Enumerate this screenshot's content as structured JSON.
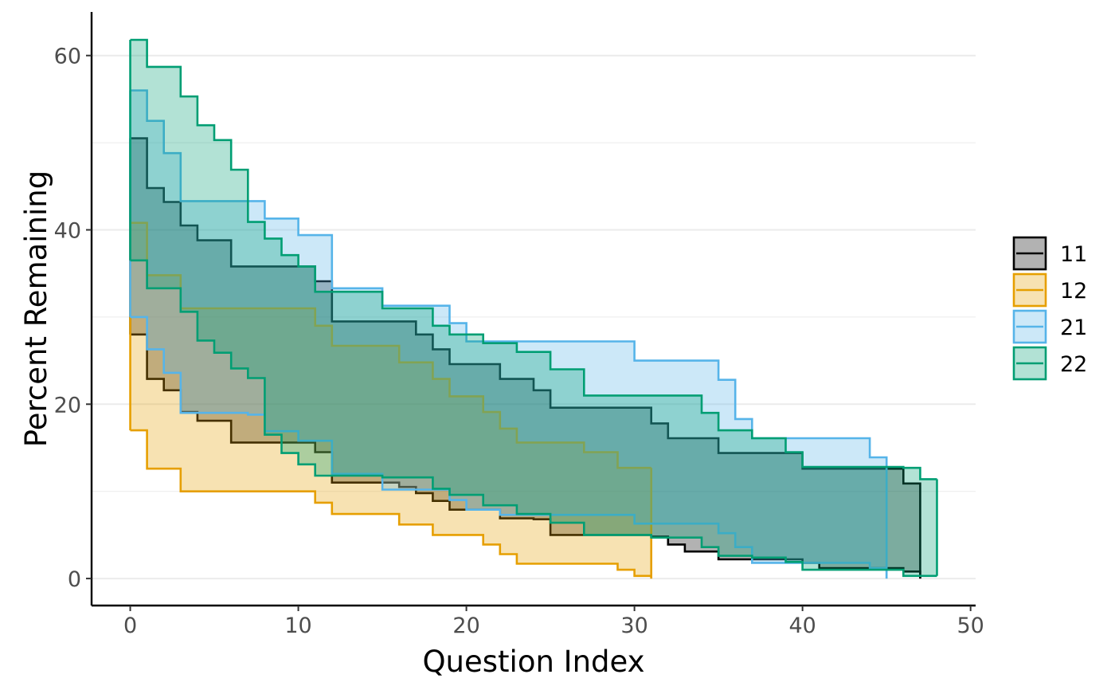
{
  "chart_data": {
    "type": "area",
    "subtype": "step-ribbon",
    "xlabel": "Question Index",
    "ylabel": "Percent Remaining",
    "xlim": [
      -2.3,
      50.3
    ],
    "ylim": [
      -3.1,
      65
    ],
    "xticks": [
      0,
      10,
      20,
      30,
      40,
      50
    ],
    "yticks": [
      0,
      20,
      40,
      60
    ],
    "grid": "horizontal",
    "legend_position": "right",
    "series": [
      {
        "name": "11",
        "color": "#000000",
        "fill": "#000000",
        "x": [
          0,
          1,
          2,
          3,
          4,
          6,
          7,
          11,
          12,
          15,
          16,
          17,
          18,
          19,
          20,
          22,
          24,
          25,
          31,
          32,
          33,
          35,
          36,
          40,
          41,
          46,
          47
        ],
        "upper": [
          50.5,
          44.8,
          43.2,
          40.5,
          38.8,
          35.8,
          35.8,
          34.1,
          29.5,
          29.5,
          29.5,
          28.0,
          26.3,
          24.6,
          24.6,
          22.9,
          21.6,
          19.6,
          17.8,
          16.1,
          16.1,
          14.4,
          14.4,
          12.6,
          12.6,
          10.9,
          0
        ],
        "lower": [
          28.0,
          22.9,
          21.6,
          19.1,
          18.1,
          15.6,
          15.6,
          14.5,
          11.0,
          11.0,
          10.5,
          9.8,
          8.9,
          7.9,
          7.9,
          6.9,
          6.8,
          5.0,
          4.8,
          3.9,
          3.1,
          2.2,
          2.2,
          1.8,
          1.2,
          0.8,
          0
        ],
        "end_x": 47
      },
      {
        "name": "12",
        "color": "#E69F00",
        "fill": "#E69F00",
        "x": [
          0,
          1,
          3,
          4,
          7,
          8,
          10,
          11,
          12,
          13,
          15,
          16,
          17,
          18,
          19,
          20,
          21,
          22,
          23,
          25,
          26,
          27,
          28,
          29,
          30,
          31
        ],
        "upper": [
          40.8,
          34.8,
          31.0,
          31.0,
          31.0,
          31.0,
          31.0,
          29.0,
          26.7,
          26.7,
          26.7,
          24.8,
          24.8,
          22.9,
          20.9,
          20.9,
          19.1,
          17.2,
          15.6,
          15.6,
          15.6,
          14.5,
          14.5,
          12.7,
          12.7,
          12.7
        ],
        "lower": [
          17.0,
          12.6,
          10.0,
          10.0,
          10.0,
          10.0,
          10.0,
          8.7,
          7.4,
          7.4,
          7.4,
          6.2,
          6.2,
          5.0,
          5.0,
          5.0,
          3.9,
          2.8,
          1.7,
          1.7,
          1.7,
          1.7,
          1.7,
          1.0,
          0.3,
          0
        ],
        "end_x": 31
      },
      {
        "name": "21",
        "color": "#56B4E9",
        "fill": "#56B4E9",
        "x": [
          0,
          1,
          2,
          3,
          7,
          8,
          10,
          12,
          15,
          19,
          20,
          22,
          30,
          35,
          36,
          37,
          40,
          44,
          45
        ],
        "upper": [
          56.0,
          52.5,
          48.8,
          43.3,
          43.3,
          41.3,
          39.4,
          33.3,
          31.3,
          29.3,
          27.2,
          27.2,
          25.0,
          22.8,
          18.3,
          16.1,
          16.1,
          13.9,
          0
        ],
        "lower": [
          30.0,
          26.3,
          23.6,
          19.0,
          18.8,
          16.9,
          15.8,
          12.0,
          10.2,
          9.0,
          7.9,
          7.3,
          6.3,
          5.2,
          3.6,
          1.8,
          1.8,
          1.2,
          0
        ],
        "end_x": 45
      },
      {
        "name": "22",
        "color": "#009E73",
        "fill": "#009E73",
        "x": [
          0,
          1,
          3,
          4,
          5,
          6,
          7,
          8,
          9,
          10,
          11,
          15,
          18,
          19,
          21,
          23,
          25,
          27,
          31,
          34,
          35,
          37,
          39,
          40,
          46,
          47,
          48
        ],
        "upper": [
          61.8,
          58.7,
          55.3,
          52.0,
          50.3,
          46.9,
          40.9,
          39.0,
          37.1,
          35.8,
          32.9,
          31.0,
          29.0,
          28.0,
          27.0,
          26.0,
          24.0,
          21.0,
          21.0,
          19.0,
          17.0,
          16.1,
          14.5,
          12.8,
          12.7,
          11.4,
          11.4
        ],
        "lower": [
          36.5,
          33.3,
          30.6,
          27.3,
          25.9,
          24.1,
          23.0,
          16.5,
          14.4,
          13.1,
          11.8,
          11.6,
          10.3,
          9.6,
          8.4,
          7.4,
          6.4,
          5.0,
          4.7,
          3.6,
          2.6,
          2.4,
          1.9,
          1.0,
          0.3,
          0.3,
          0.3
        ],
        "end_x": 48
      }
    ]
  }
}
